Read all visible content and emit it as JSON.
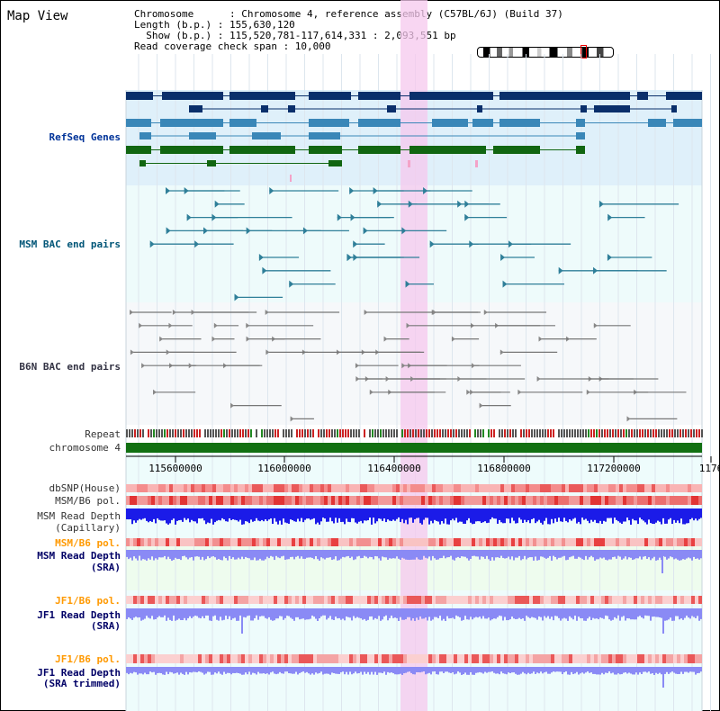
{
  "title": "Map View",
  "info": {
    "line1": "Chromosome      : Chromosome 4, reference assembly (C57BL/6J) (Build 37)",
    "line2": "Length (b.p.) : 155,630,120",
    "line3": "  Show (b.p.) : 115,520,781-117,614,331 : 2,093,551 bp",
    "line4": "Read coverage check span : 10,000"
  },
  "tracks": {
    "refseq": "RefSeq Genes",
    "msm_bac": "MSM BAC end pairs",
    "b6n_bac": "B6N BAC end pairs",
    "repeat": "Repeat",
    "chromosome": "chromosome 4",
    "dbsnp": "dbSNP(House)",
    "msm_b6_pol_1": "MSM/B6 pol.",
    "msm_depth_cap_1": "MSM Read Depth",
    "msm_depth_cap_2": "(Capillary)",
    "msm_b6_pol_2": "MSM/B6 pol.",
    "msm_depth_sra_1": "MSM Read Depth",
    "msm_depth_sra_2": "(SRA)",
    "jf1_b6_pol_1": "JF1/B6 pol.",
    "jf1_depth_sra_1": "JF1 Read Depth",
    "jf1_depth_sra_2": "(SRA)",
    "jf1_b6_pol_2": "JF1/B6 pol.",
    "jf1_depth_trim_1": "JF1 Read Depth",
    "jf1_depth_trim_2": "(SRA trimmed)"
  },
  "axis": {
    "ticks": [
      "115600000",
      "116000000",
      "116400000",
      "116800000",
      "117200000",
      "1176"
    ]
  },
  "colors": {
    "refseq_bg": "#dff0fa",
    "bac_bg": "#eefbfb",
    "highlight": "#f6c8ee",
    "gene_dark": "#0a2f6b",
    "gene_mid": "#3a87b8",
    "gene_green": "#116611",
    "chrom_bar": "#127012",
    "depth_blue": "#1b1be8",
    "depth_light": "#8a8af5"
  }
}
